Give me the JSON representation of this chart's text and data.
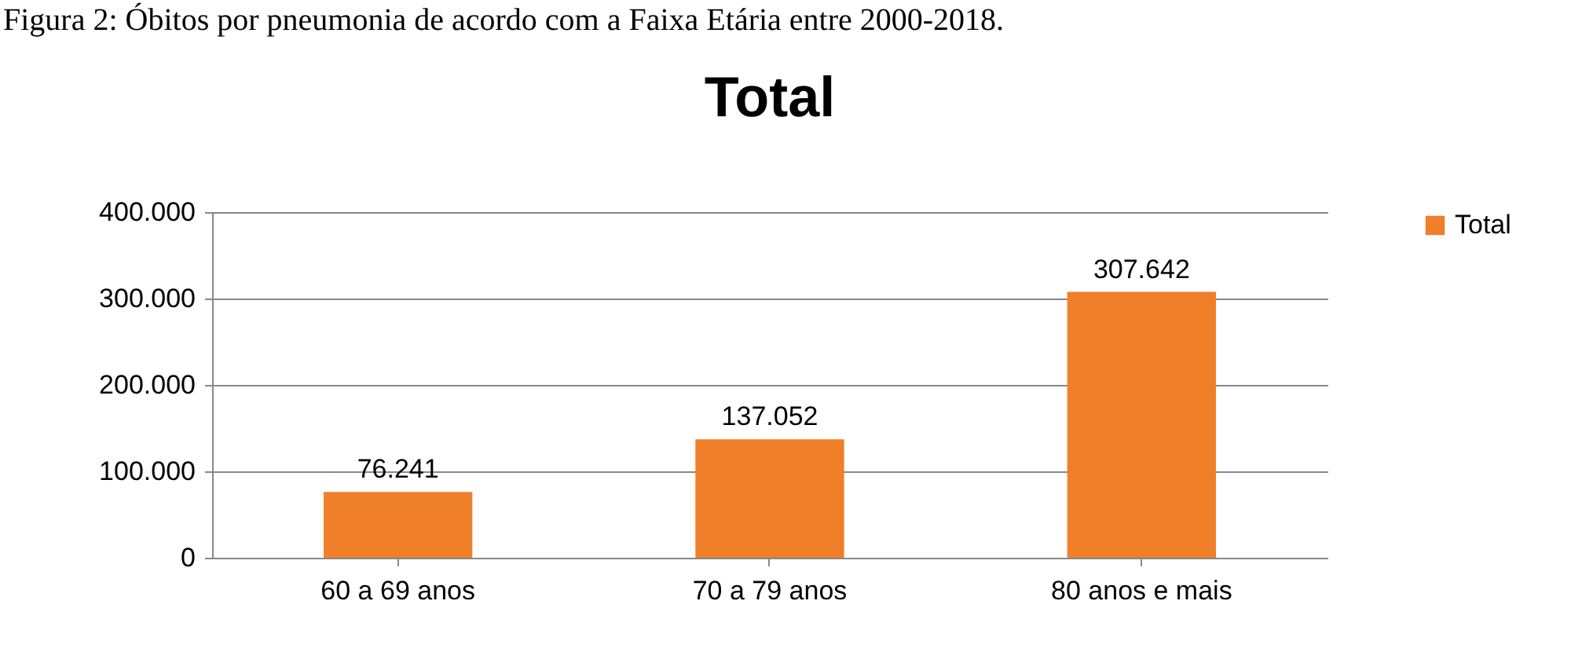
{
  "chart_data": {
    "type": "bar",
    "title": "Total",
    "annotations": [
      "Figura 2: Óbitos por pneumonia de acordo com a Faixa Etária entre 2000-2018."
    ],
    "categories": [
      "60 a 69 anos",
      "70 a 79 anos",
      "80 anos e mais"
    ],
    "series": [
      {
        "name": "Total",
        "color": "#f07f2a",
        "values": [
          76241,
          137052,
          307642
        ],
        "value_labels": [
          "76.241",
          "137.052",
          "307.642"
        ]
      }
    ],
    "ylim": [
      0,
      400000
    ],
    "yticks": [
      {
        "value": 0,
        "label": "0"
      },
      {
        "value": 100000,
        "label": "100.000"
      },
      {
        "value": 200000,
        "label": "200.000"
      },
      {
        "value": 300000,
        "label": "300.000"
      },
      {
        "value": 400000,
        "label": "400.000"
      }
    ],
    "grid": "y",
    "legend": "right"
  }
}
